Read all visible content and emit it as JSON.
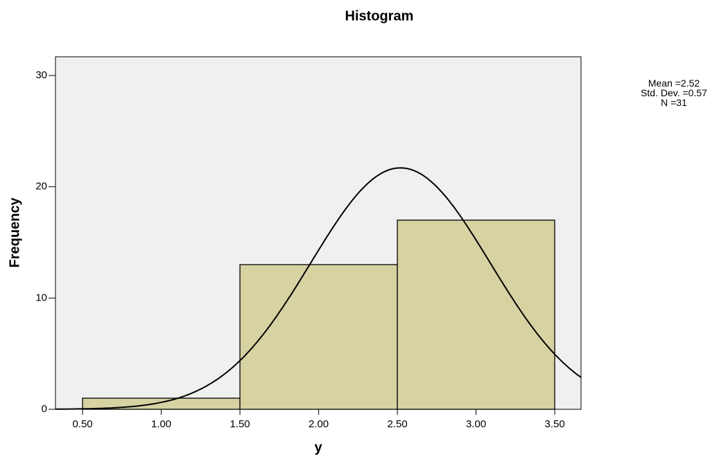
{
  "chart_data": {
    "type": "histogram",
    "title": "Histogram",
    "x_label": "y",
    "y_label": "Frequency",
    "bins": [
      0.5,
      1.5,
      2.5,
      3.5
    ],
    "values": [
      1,
      13,
      17
    ],
    "color": "#d6d2a2",
    "plot_background": "#f0f0f0",
    "xlim": [
      0.328,
      3.667
    ],
    "ylim": [
      0,
      31.68
    ],
    "xticks": [
      {
        "value": 0.5,
        "label": "0.50"
      },
      {
        "value": 1.0,
        "label": "1.00"
      },
      {
        "value": 1.5,
        "label": "1.50"
      },
      {
        "value": 2.0,
        "label": "2.00"
      },
      {
        "value": 2.5,
        "label": "2.50"
      },
      {
        "value": 3.0,
        "label": "3.00"
      },
      {
        "value": 3.5,
        "label": "3.50"
      }
    ],
    "yticks": [
      0,
      10,
      20,
      30
    ],
    "stats": {
      "mean": {
        "label": "Mean =",
        "value": 2.52,
        "value_label": "2.52"
      },
      "std_dev": {
        "label": "Std. Dev. =",
        "value": 0.57,
        "value_label": "0.57"
      },
      "n": {
        "label": "N =",
        "value": 31,
        "value_label": "31"
      }
    }
  }
}
